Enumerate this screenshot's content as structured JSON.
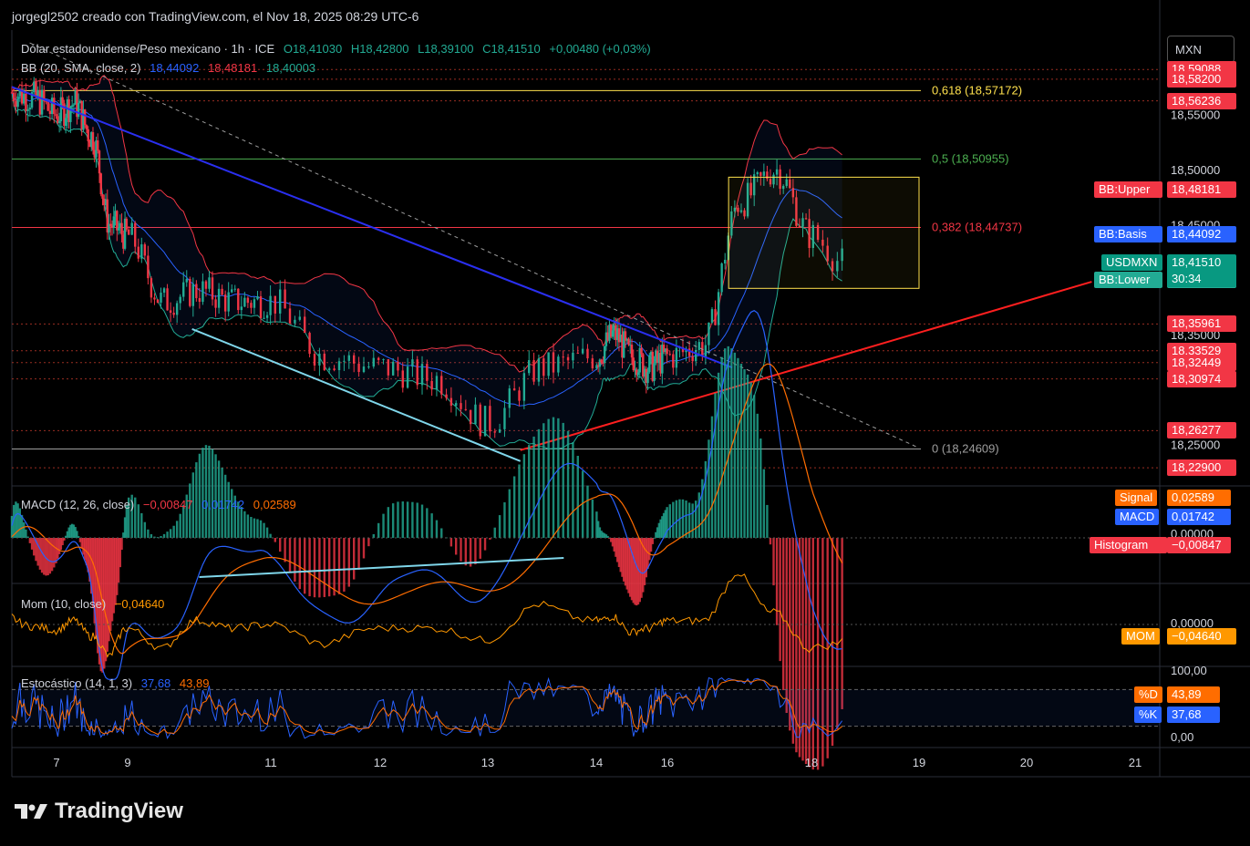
{
  "header": {
    "credit": "jorgegl2502 creado con TradingView.com, el Nov 18, 2025 08:29 UTC-6"
  },
  "legend": {
    "symbol": "Dólar estadounidense/Peso mexicano · 1h · ICE",
    "o": "O18,41030",
    "h": "H18,42800",
    "l": "L18,39100",
    "c": "C18,41510",
    "chg": "+0,00480 (+0,03%)",
    "bb_label": "BB (20, SMA, close, 2)",
    "bb_basis": "18,44092",
    "bb_upper": "18,48181",
    "bb_lower": "18,40003",
    "macd_label": "MACD (12, 26, close)",
    "macd_hist": "−0,00847",
    "macd_macd": "0,01742",
    "macd_signal": "0,02589",
    "mom_label": "Mom (10, close)",
    "mom_val": "−0,04640",
    "stoch_label": "Estocástico (14, 1, 3)",
    "stoch_k": "37,68",
    "stoch_d": "43,89"
  },
  "currency_button": "MXN",
  "colors": {
    "up": "#22ab94",
    "down": "#f23645",
    "bb_basis": "#2962ff",
    "bb_band_upper": "#f23645",
    "bb_band_lower": "#22ab94",
    "trend_down": "#2a2ff0",
    "trend_up": "#ff1f1f",
    "arrow": "#7fd6ea",
    "fib_618": "#ffe14d",
    "fib_5": "#4caf50",
    "fib_382": "#f23645",
    "fib_0": "#9e9e9e",
    "macd": "#2962ff",
    "signal": "#ff6d00",
    "mom": "#ff9800"
  },
  "chart_data": [
    {
      "type": "candlestick",
      "title": "Dólar estadounidense/Peso mexicano · 1h · ICE",
      "ylim": [
        18.215,
        18.625
      ],
      "price_ticks": [
        "18,55000",
        "18,50000",
        "18,45000",
        "18,35000",
        "18,25000"
      ],
      "x_tick_labels": [
        "7",
        "9",
        "11",
        "12",
        "13",
        "14",
        "16",
        "18",
        "19",
        "20",
        "21"
      ],
      "fib_levels": [
        {
          "label": "0,618 (18,57172)",
          "value": 18.57172
        },
        {
          "label": "0,5 (18,50955)",
          "value": 18.50955
        },
        {
          "label": "0,382 (18,44737)",
          "value": 18.44737
        },
        {
          "label": "0 (18,24609)",
          "value": 18.24609
        }
      ],
      "horizontal_levels": [
        {
          "label": "18,59088",
          "value": 18.59088
        },
        {
          "label": "18,58200",
          "value": 18.582
        },
        {
          "label": "18,56236",
          "value": 18.56236
        },
        {
          "label": "18,35961",
          "value": 18.35961
        },
        {
          "label": "18,33529",
          "value": 18.33529
        },
        {
          "label": "18,32449",
          "value": 18.32449
        },
        {
          "label": "18,30974",
          "value": 18.30974
        },
        {
          "label": "18,26277",
          "value": 18.26277
        },
        {
          "label": "18,22900",
          "value": 18.229
        }
      ],
      "last_price": {
        "label": "USDMXN",
        "value": "18,41510",
        "countdown": "30:34"
      },
      "bb_tags": [
        {
          "label": "BB:Upper",
          "value": "18,48181"
        },
        {
          "label": "BB:Basis",
          "value": "18,44092"
        },
        {
          "label": "BB:Lower",
          "value": "18,40003"
        }
      ],
      "key_points": {
        "x_days": [
          6.0,
          6.5,
          7.0,
          7.5,
          8.0,
          8.5,
          9.0,
          9.5,
          10.0,
          10.5,
          11.0,
          11.5,
          12.0,
          12.5,
          13.0,
          13.5,
          14.0,
          14.5,
          15.0,
          15.5,
          16.0,
          16.5,
          17.0,
          17.5,
          18.0,
          18.3
        ],
        "close": [
          18.57,
          18.565,
          18.55,
          18.56,
          18.53,
          18.45,
          18.44,
          18.38,
          18.39,
          18.38,
          18.38,
          18.33,
          18.32,
          18.31,
          18.27,
          18.32,
          18.33,
          18.35,
          18.33,
          18.32,
          18.33,
          18.34,
          18.47,
          18.5,
          18.44,
          18.415
        ]
      }
    },
    {
      "type": "line",
      "title": "MACD (12, 26, close)",
      "tick_label": "0,00000",
      "tags": [
        {
          "label": "Signal",
          "value": "0,02589"
        },
        {
          "label": "MACD",
          "value": "0,01742"
        },
        {
          "label": "Histogram",
          "value": "−0,00847"
        }
      ]
    },
    {
      "type": "line",
      "title": "Mom (10, close)",
      "tick_label": "0,00000",
      "tag": {
        "label": "MOM",
        "value": "−0,04640"
      }
    },
    {
      "type": "line",
      "title": "Estocástico (14, 1, 3)",
      "ylim": [
        0,
        100
      ],
      "tick_labels": [
        "100,00",
        "0,00"
      ],
      "tags": [
        {
          "label": "%D",
          "value": "43,89"
        },
        {
          "label": "%K",
          "value": "37,68"
        }
      ]
    }
  ],
  "branding": "TradingView"
}
